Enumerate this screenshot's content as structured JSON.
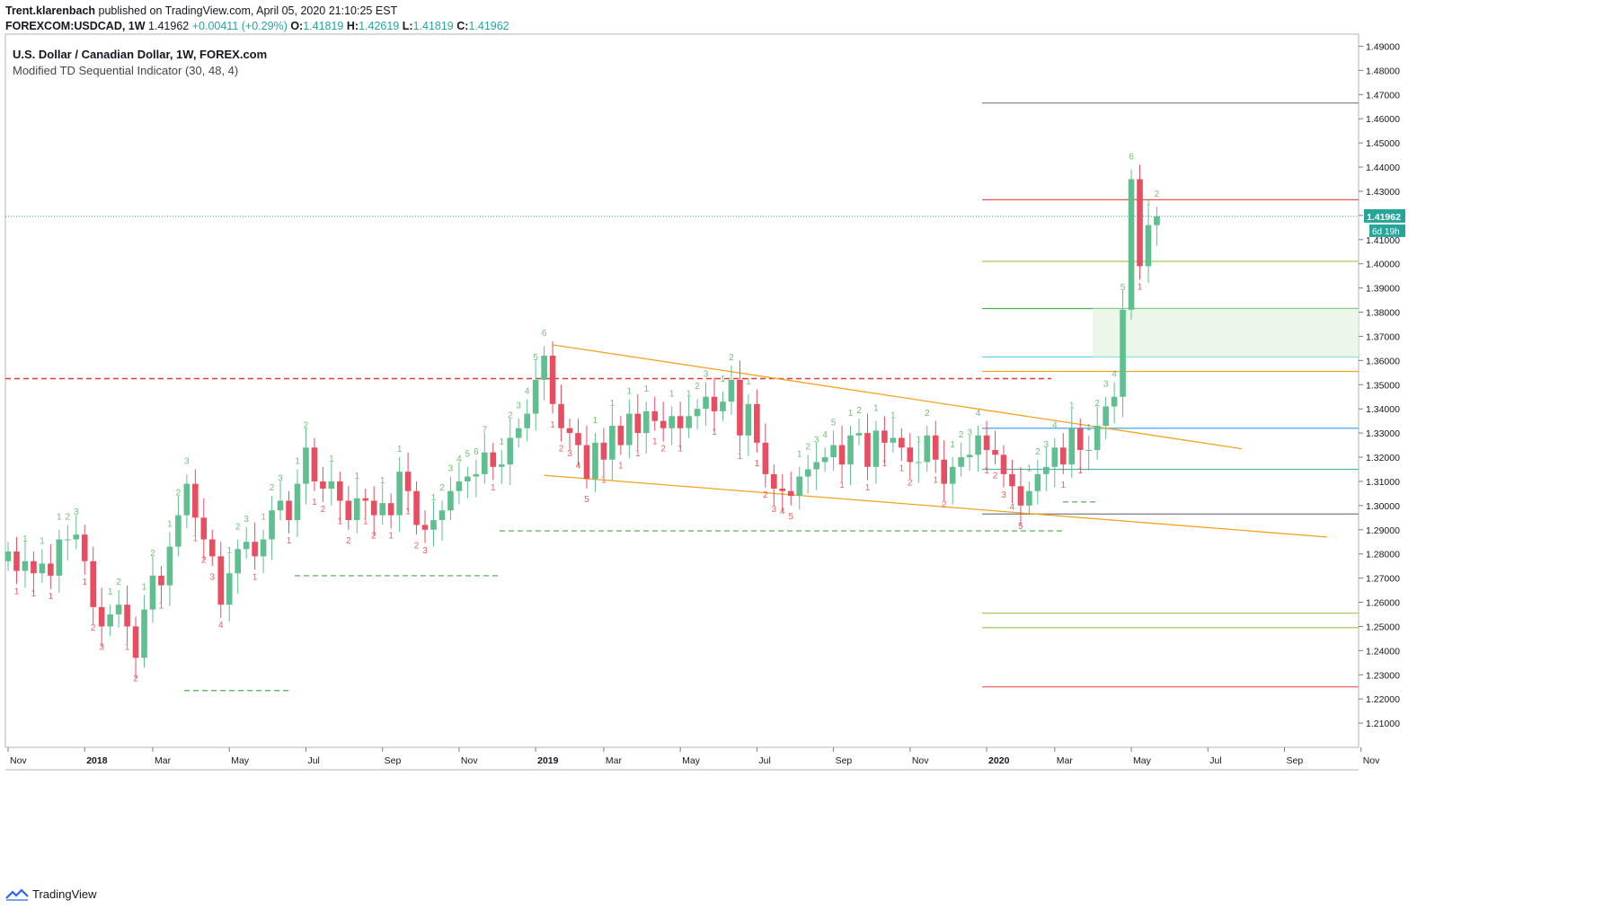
{
  "publish_line": {
    "author": "Trent.klarenbach",
    "text": "published on TradingView.com, April 05, 2020 21:10:25 EST"
  },
  "ticker_line": {
    "symbol": "FOREXCOM:USDCAD, 1W",
    "last": "1.41962",
    "change": "+0.00411 (+0.29%)",
    "open_label": "O:",
    "open": "1.41819",
    "high_label": "H:",
    "high": "1.42619",
    "low_label": "L:",
    "low": "1.41819",
    "close_label": "C:",
    "close": "1.41962"
  },
  "header": {
    "title": "U.S. Dollar / Canadian Dollar, 1W, FOREX.com",
    "indicator": "Modified TD Sequential Indicator (30, 48, 4)"
  },
  "price_label": {
    "value": "1.41962",
    "countdown": "6d 19h"
  },
  "footer": {
    "brand": "TradingView",
    "icon": "tradingview-logo-icon"
  },
  "colors": {
    "up": "#26a69a",
    "down": "#ef5350",
    "up_body": "#5fbf8f",
    "down_body": "#e84e61",
    "orange": "#f6a21e",
    "red_dashed": "#e53935",
    "green_dashed": "#66bb6a"
  },
  "chart_data": {
    "type": "candlestick",
    "title": "U.S. Dollar / Canadian Dollar, 1W, FOREX.com",
    "ylim": [
      1.2,
      1.495
    ],
    "y_ticks": [
      "1.21000",
      "1.22000",
      "1.23000",
      "1.24000",
      "1.25000",
      "1.26000",
      "1.27000",
      "1.28000",
      "1.29000",
      "1.30000",
      "1.31000",
      "1.32000",
      "1.33000",
      "1.34000",
      "1.35000",
      "1.36000",
      "1.37000",
      "1.38000",
      "1.39000",
      "1.40000",
      "1.41000",
      "1.42000",
      "1.43000",
      "1.44000",
      "1.45000",
      "1.46000",
      "1.47000",
      "1.48000",
      "1.49000"
    ],
    "x_ticks": [
      {
        "label": "Nov",
        "week": 0
      },
      {
        "label": "2018",
        "week": 9,
        "bold": true
      },
      {
        "label": "Mar",
        "week": 17
      },
      {
        "label": "May",
        "week": 26
      },
      {
        "label": "Jul",
        "week": 35
      },
      {
        "label": "Sep",
        "week": 44
      },
      {
        "label": "Nov",
        "week": 53
      },
      {
        "label": "2019",
        "week": 62,
        "bold": true
      },
      {
        "label": "Mar",
        "week": 70
      },
      {
        "label": "May",
        "week": 79
      },
      {
        "label": "Jul",
        "week": 88
      },
      {
        "label": "Sep",
        "week": 97
      },
      {
        "label": "Nov",
        "week": 106
      },
      {
        "label": "2020",
        "week": 115,
        "bold": true
      },
      {
        "label": "Mar",
        "week": 123
      },
      {
        "label": "May",
        "week": 132
      },
      {
        "label": "Jul",
        "week": 141
      },
      {
        "label": "Sep",
        "week": 150
      },
      {
        "label": "Nov",
        "week": 159
      }
    ],
    "closes": [
      1.281,
      1.273,
      1.277,
      1.272,
      1.276,
      1.271,
      1.286,
      1.286,
      1.288,
      1.277,
      1.258,
      1.25,
      1.255,
      1.259,
      1.25,
      1.237,
      1.257,
      1.271,
      1.267,
      1.283,
      1.296,
      1.309,
      1.295,
      1.286,
      1.279,
      1.259,
      1.272,
      1.282,
      1.285,
      1.279,
      1.286,
      1.298,
      1.302,
      1.294,
      1.309,
      1.324,
      1.31,
      1.307,
      1.31,
      1.302,
      1.294,
      1.303,
      1.302,
      1.296,
      1.301,
      1.296,
      1.314,
      1.306,
      1.292,
      1.29,
      1.294,
      1.298,
      1.306,
      1.31,
      1.312,
      1.313,
      1.322,
      1.316,
      1.317,
      1.328,
      1.332,
      1.338,
      1.352,
      1.362,
      1.342,
      1.332,
      1.33,
      1.325,
      1.311,
      1.326,
      1.319,
      1.333,
      1.325,
      1.338,
      1.33,
      1.339,
      1.335,
      1.332,
      1.337,
      1.332,
      1.337,
      1.34,
      1.345,
      1.339,
      1.343,
      1.352,
      1.329,
      1.342,
      1.326,
      1.313,
      1.307,
      1.306,
      1.304,
      1.312,
      1.315,
      1.318,
      1.32,
      1.325,
      1.317,
      1.329,
      1.33,
      1.316,
      1.331,
      1.326,
      1.328,
      1.324,
      1.318,
      1.318,
      1.329,
      1.319,
      1.309,
      1.316,
      1.32,
      1.321,
      1.329,
      1.323,
      1.321,
      1.313,
      1.308,
      1.3,
      1.306,
      1.313,
      1.316,
      1.324,
      1.317,
      1.332,
      1.323,
      1.323,
      1.333,
      1.341,
      1.345,
      1.381,
      1.435,
      1.399,
      1.416,
      1.4196
    ],
    "last_price": 1.41962,
    "horizontal_lines": [
      {
        "price": 1.4665,
        "color": "#787b86",
        "style": "solid"
      },
      {
        "price": 1.4265,
        "color": "#ef5350",
        "style": "solid"
      },
      {
        "price": 1.401,
        "color": "#a5c95a",
        "style": "solid"
      },
      {
        "price": 1.3815,
        "color": "#4caf50",
        "style": "solid"
      },
      {
        "price": 1.3615,
        "color": "#4dd0e1",
        "style": "solid"
      },
      {
        "price": 1.3555,
        "color": "#f6a21e",
        "style": "solid"
      },
      {
        "price": 1.332,
        "color": "#42a5f5",
        "style": "solid"
      },
      {
        "price": 1.315,
        "color": "#4db6ac",
        "style": "solid"
      },
      {
        "price": 1.2965,
        "color": "#787b86",
        "style": "solid"
      },
      {
        "price": 1.2555,
        "color": "#a5c95a",
        "style": "solid"
      },
      {
        "price": 1.2495,
        "color": "#a5c95a",
        "style": "solid"
      },
      {
        "price": 1.225,
        "color": "#ef5350",
        "style": "solid"
      }
    ],
    "trendlines": [
      {
        "from": [
          64,
          1.3665
        ],
        "to": [
          145,
          1.3235
        ]
      },
      {
        "from": [
          63,
          1.3125
        ],
        "to": [
          155,
          1.287
        ]
      }
    ]
  }
}
